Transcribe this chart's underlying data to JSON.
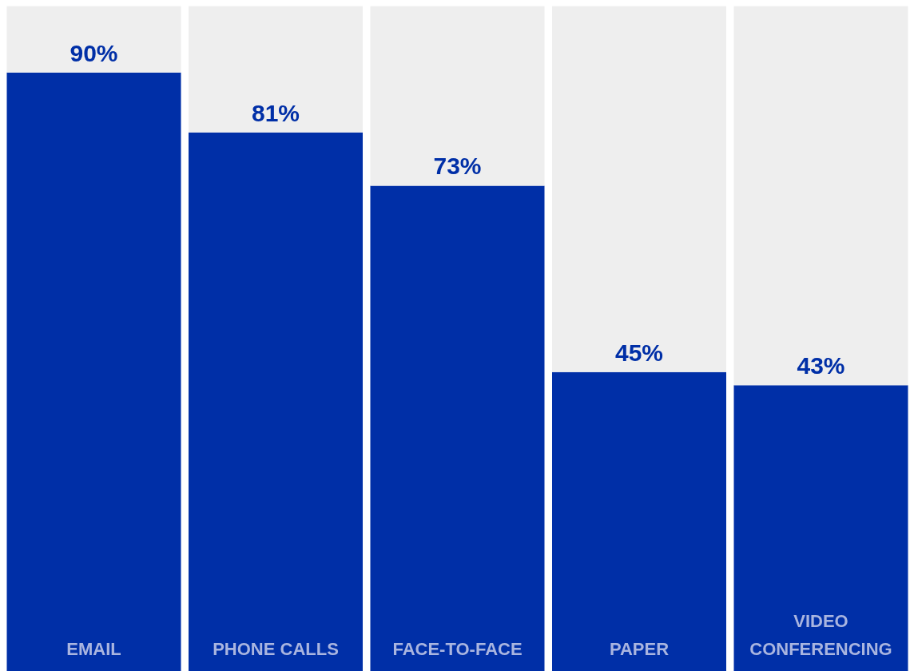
{
  "chart_data": {
    "type": "bar",
    "stacked": true,
    "categories": [
      "EMAIL",
      "PHONE CALLS",
      "FACE-TO-FACE",
      "PAPER",
      "VIDEO CONFERENCING"
    ],
    "series": [
      {
        "color": "#002fa7",
        "values": [
          90,
          81,
          73,
          45,
          43
        ],
        "value_labels": [
          "90%",
          "81%",
          "73%",
          "45%",
          "43%"
        ]
      },
      {
        "color": "#eeeeee",
        "values": [
          10,
          19,
          27,
          55,
          57
        ]
      }
    ],
    "ylim": [
      0,
      100
    ],
    "tick_labels": false,
    "grid": false
  }
}
